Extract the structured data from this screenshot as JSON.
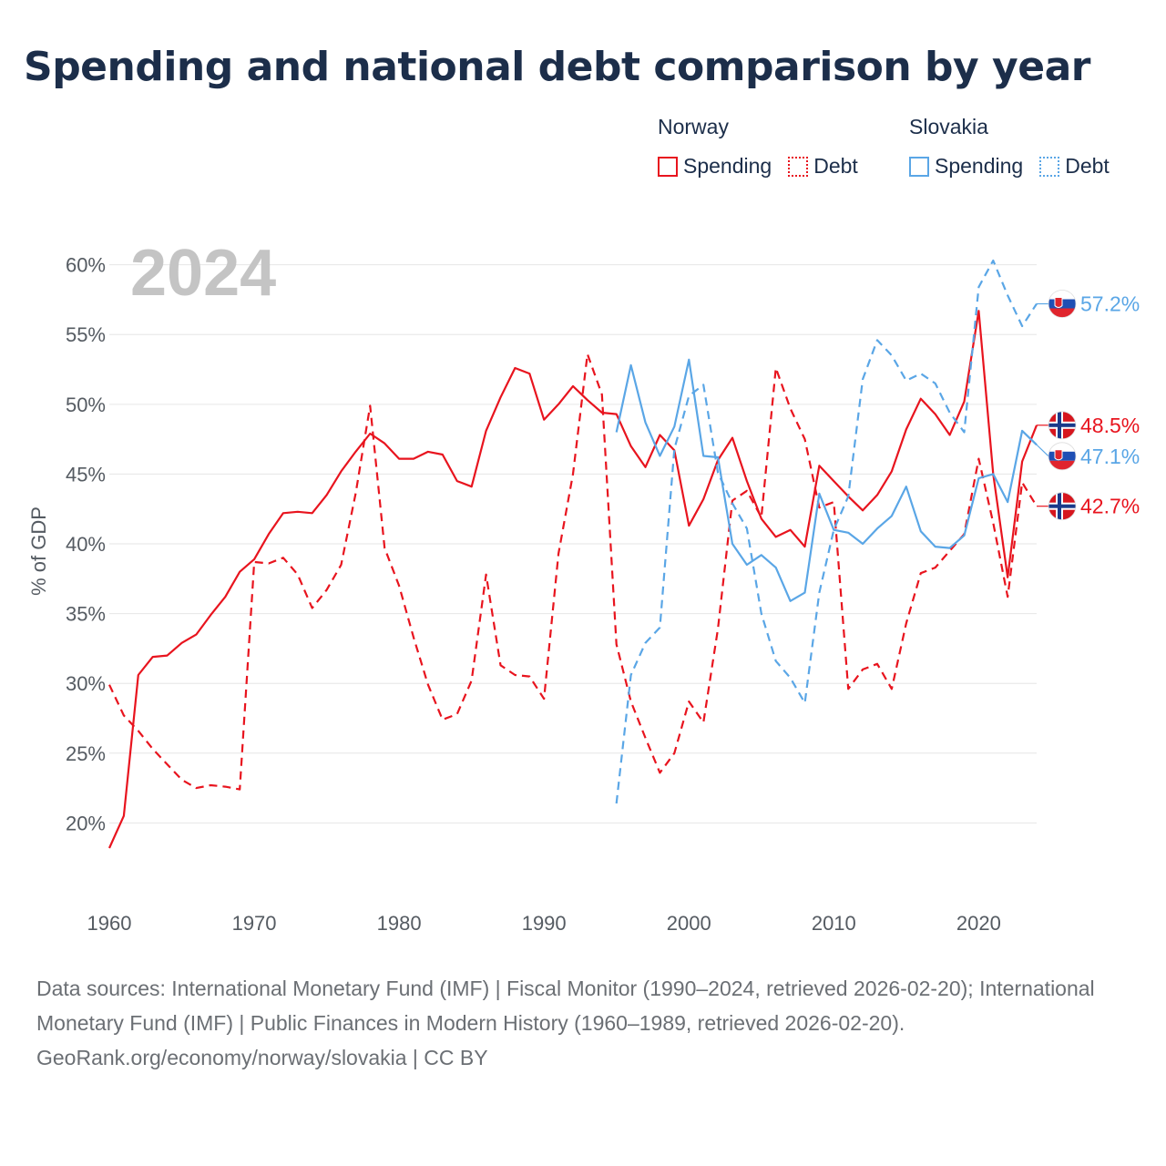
{
  "title": "Spending and national debt comparison by year",
  "legend": {
    "groups": [
      {
        "name": "Norway",
        "color": "#e8141e",
        "items": [
          {
            "label": "Spending",
            "style": "solid"
          },
          {
            "label": "Debt",
            "style": "dotted"
          }
        ]
      },
      {
        "name": "Slovakia",
        "color": "#5aa6e6",
        "items": [
          {
            "label": "Spending",
            "style": "solid"
          },
          {
            "label": "Debt",
            "style": "dotted"
          }
        ]
      }
    ]
  },
  "year_label": "2024",
  "footer": {
    "sources": "Data sources: International Monetary Fund (IMF) | Fiscal Monitor (1990–2024, retrieved 2026-02-20); International Monetary Fund (IMF) | Public Finances in Modern History (1960–1989, retrieved 2026-02-20).",
    "credit": "GeoRank.org/economy/norway/slovakia | CC BY"
  },
  "chart_data": {
    "type": "line",
    "title": "Spending and national debt comparison by year",
    "xlabel": "",
    "ylabel": "% of GDP",
    "xlim": [
      1960,
      2024
    ],
    "ylim": [
      15,
      62
    ],
    "xticks": [
      1960,
      1970,
      1980,
      1990,
      2000,
      2010,
      2020
    ],
    "yticks": [
      20,
      25,
      30,
      35,
      40,
      45,
      50,
      55,
      60
    ],
    "ytick_suffix": "%",
    "grid": true,
    "series": [
      {
        "name": "Norway Spending",
        "color": "#e8141e",
        "dash": "solid",
        "end_label": "48.5%",
        "x": [
          1960,
          1961,
          1962,
          1963,
          1964,
          1965,
          1966,
          1967,
          1968,
          1969,
          1970,
          1971,
          1972,
          1973,
          1974,
          1975,
          1976,
          1977,
          1978,
          1979,
          1980,
          1981,
          1982,
          1983,
          1984,
          1985,
          1986,
          1987,
          1988,
          1989,
          1990,
          1991,
          1992,
          1993,
          1994,
          1995,
          1996,
          1997,
          1998,
          1999,
          2000,
          2001,
          2002,
          2003,
          2004,
          2005,
          2006,
          2007,
          2008,
          2009,
          2010,
          2011,
          2012,
          2013,
          2014,
          2015,
          2016,
          2017,
          2018,
          2019,
          2020,
          2021,
          2022,
          2023,
          2024
        ],
        "values": [
          18.2,
          20.5,
          30.6,
          31.9,
          32.0,
          32.9,
          33.5,
          34.9,
          36.2,
          38.0,
          38.9,
          40.7,
          42.2,
          42.3,
          42.2,
          43.5,
          45.2,
          46.6,
          47.9,
          47.2,
          46.1,
          46.1,
          46.6,
          46.4,
          44.5,
          44.1,
          48.1,
          50.5,
          52.6,
          52.2,
          48.9,
          50.0,
          51.3,
          50.3,
          49.4,
          49.3,
          47.0,
          45.5,
          47.8,
          46.7,
          41.3,
          43.2,
          46.0,
          47.6,
          44.5,
          41.8,
          40.5,
          41.0,
          39.8,
          45.6,
          44.5,
          43.4,
          42.4,
          43.5,
          45.2,
          48.2,
          50.4,
          49.3,
          47.8,
          50.2,
          56.7,
          45.0,
          37.6,
          45.9,
          48.5
        ]
      },
      {
        "name": "Norway Debt",
        "color": "#e8141e",
        "dash": "dashed",
        "end_label": "42.7%",
        "x": [
          1960,
          1961,
          1962,
          1963,
          1964,
          1965,
          1966,
          1967,
          1968,
          1969,
          1970,
          1971,
          1972,
          1973,
          1974,
          1975,
          1976,
          1977,
          1978,
          1979,
          1980,
          1981,
          1982,
          1983,
          1984,
          1985,
          1986,
          1987,
          1988,
          1989,
          1990,
          1991,
          1992,
          1993,
          1994,
          1995,
          1996,
          1997,
          1998,
          1999,
          2000,
          2001,
          2002,
          2003,
          2004,
          2005,
          2006,
          2007,
          2008,
          2009,
          2010,
          2011,
          2012,
          2013,
          2014,
          2015,
          2016,
          2017,
          2018,
          2019,
          2020,
          2021,
          2022,
          2023,
          2024
        ],
        "values": [
          29.9,
          27.7,
          26.6,
          25.3,
          24.2,
          23.1,
          22.5,
          22.7,
          22.6,
          22.4,
          38.7,
          38.6,
          39.0,
          37.8,
          35.4,
          36.7,
          38.5,
          43.6,
          49.9,
          39.7,
          37.0,
          33.3,
          29.9,
          27.4,
          27.8,
          30.2,
          37.8,
          31.3,
          30.6,
          30.5,
          28.9,
          39.3,
          45.0,
          53.6,
          50.7,
          32.8,
          28.7,
          26.1,
          23.6,
          25.0,
          28.7,
          27.2,
          33.9,
          43.1,
          43.8,
          41.9,
          52.6,
          49.7,
          47.5,
          42.6,
          43.0,
          29.6,
          31.0,
          31.4,
          29.6,
          34.3,
          37.9,
          38.3,
          39.5,
          40.7,
          46.1,
          41.5,
          36.2,
          44.4,
          42.7
        ]
      },
      {
        "name": "Slovakia Spending",
        "color": "#5aa6e6",
        "dash": "solid",
        "end_label": "47.1%",
        "x": [
          1995,
          1996,
          1997,
          1998,
          1999,
          2000,
          2001,
          2002,
          2003,
          2004,
          2005,
          2006,
          2007,
          2008,
          2009,
          2010,
          2011,
          2012,
          2013,
          2014,
          2015,
          2016,
          2017,
          2018,
          2019,
          2020,
          2021,
          2022,
          2023,
          2024
        ],
        "values": [
          48.0,
          52.8,
          48.7,
          46.3,
          48.4,
          53.2,
          46.3,
          46.2,
          40.0,
          38.5,
          39.2,
          38.3,
          35.9,
          36.5,
          43.6,
          41.0,
          40.8,
          40.0,
          41.1,
          42.0,
          44.1,
          40.9,
          39.8,
          39.7,
          40.6,
          44.7,
          45.0,
          43.0,
          48.1,
          47.1
        ]
      },
      {
        "name": "Slovakia Debt",
        "color": "#5aa6e6",
        "dash": "dashed",
        "end_label": "57.2%",
        "x": [
          1995,
          1996,
          1997,
          1998,
          1999,
          2000,
          2001,
          2002,
          2003,
          2004,
          2005,
          2006,
          2007,
          2008,
          2009,
          2010,
          2011,
          2012,
          2013,
          2014,
          2015,
          2016,
          2017,
          2018,
          2019,
          2020,
          2021,
          2022,
          2023,
          2024
        ],
        "values": [
          21.4,
          30.6,
          32.9,
          34.0,
          46.8,
          50.6,
          51.4,
          45.1,
          42.9,
          41.1,
          35.0,
          31.6,
          30.4,
          28.6,
          36.5,
          41.0,
          43.4,
          51.8,
          54.6,
          53.5,
          51.7,
          52.2,
          51.5,
          49.4,
          48.0,
          58.4,
          60.3,
          57.8,
          55.6,
          57.2
        ]
      }
    ]
  }
}
